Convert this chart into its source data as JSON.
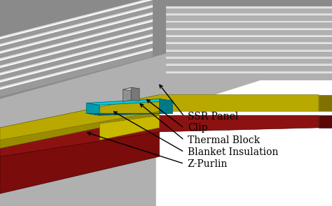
{
  "background_color": "#c8c8c8",
  "fig_width": 4.74,
  "fig_height": 2.95,
  "dpi": 100,
  "labels": [
    "SSR Panel",
    "Clip",
    "Thermal Block",
    "Blanket Insulation",
    "Z-Purlin"
  ],
  "label_fontsize": 10,
  "roof_gray": "#8a8a8a",
  "roof_light": "#b8b8b8",
  "roof_white": "#e8e8e8",
  "yellow_top": "#b8a800",
  "yellow_front": "#9a8c00",
  "yellow_side": "#ccc000",
  "red_front": "#7a0c0c",
  "red_top": "#8c1212",
  "cyan_top": "#00c8d8",
  "cyan_front": "#009aaa",
  "cyan_side": "#007888",
  "clip_front": "#909090",
  "clip_top": "#b8b8b8",
  "white_bg": "#ffffff"
}
